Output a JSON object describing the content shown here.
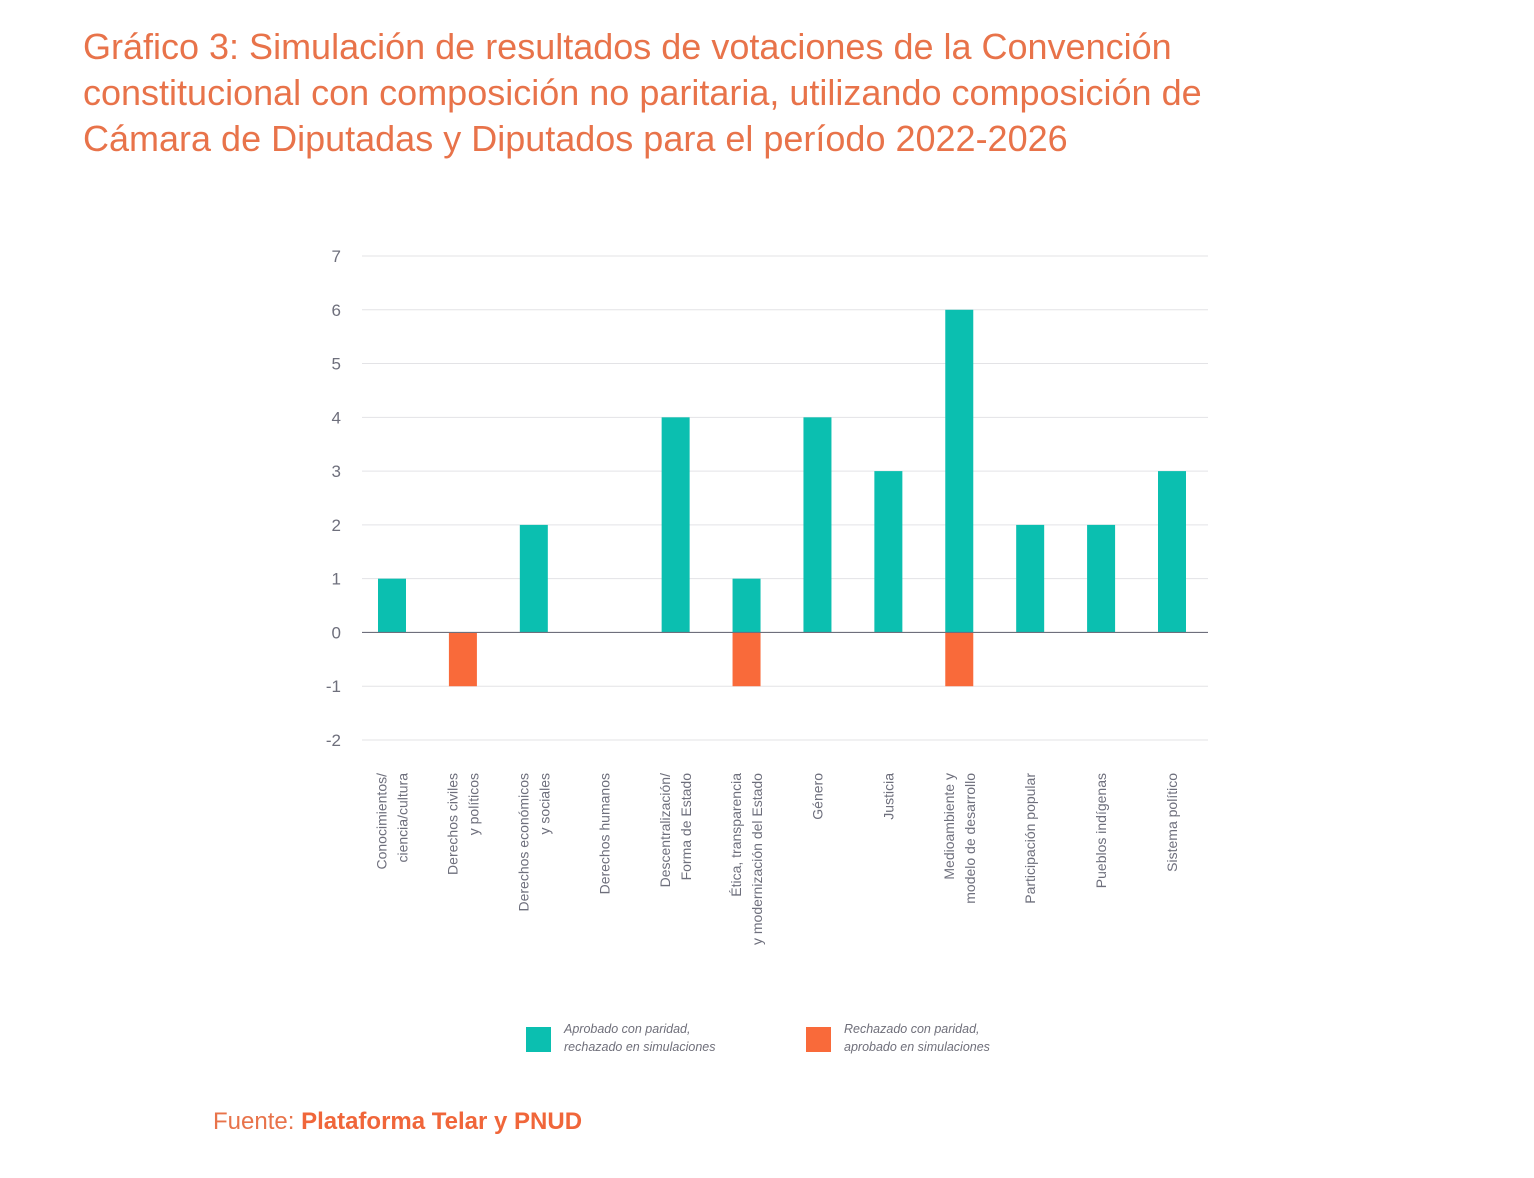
{
  "title": {
    "line1": "Gráfico 3: Simulación de resultados de votaciones de la Convención",
    "line2": "constitucional con composición no paritaria, utilizando composición de",
    "line3": "Cámara de Diputadas y Diputados para el período 2022-2026"
  },
  "legend": [
    {
      "line1": "Aprobado con paridad,",
      "line2": "rechazado en simulaciones",
      "color": "#0bbfb0"
    },
    {
      "line1": "Rechazado con paridad,",
      "line2": "aprobado en simulaciones",
      "color": "#f96a3a"
    }
  ],
  "source": {
    "label": "Fuente:",
    "value": "Plataforma Telar y PNUD"
  },
  "chart_data": {
    "type": "bar",
    "categories": [
      [
        "Conocimientos/",
        "ciencia/cultura"
      ],
      [
        "Derechos civiles",
        "y políticos"
      ],
      [
        "Derechos económicos",
        "y sociales"
      ],
      [
        "Derechos humanos"
      ],
      [
        "Descentralización/",
        "Forma de Estado"
      ],
      [
        "Ética, transparencia",
        "y modernización del Estado"
      ],
      [
        "Género"
      ],
      [
        "Justicia"
      ],
      [
        "Medioambiente y",
        "modelo de desarrollo"
      ],
      [
        "Participación popular"
      ],
      [
        "Pueblos indígenas"
      ],
      [
        "Sistema político"
      ]
    ],
    "series": [
      {
        "name": "Aprobado con paridad, rechazado en simulaciones",
        "color": "#0bbfb0",
        "values": [
          1,
          0,
          2,
          0,
          4,
          1,
          4,
          3,
          6,
          2,
          2,
          3
        ]
      },
      {
        "name": "Rechazado con paridad, aprobado en simulaciones",
        "color": "#f96a3a",
        "values": [
          0,
          -1,
          0,
          0,
          0,
          -1,
          0,
          0,
          -1,
          0,
          0,
          0
        ]
      }
    ],
    "yticks": [
      7,
      6,
      5,
      4,
      3,
      2,
      1,
      0,
      -1,
      -2
    ],
    "ylim": [
      -2,
      7
    ],
    "grid": true,
    "legend_position": "bottom",
    "xlabel": "",
    "ylabel": ""
  }
}
